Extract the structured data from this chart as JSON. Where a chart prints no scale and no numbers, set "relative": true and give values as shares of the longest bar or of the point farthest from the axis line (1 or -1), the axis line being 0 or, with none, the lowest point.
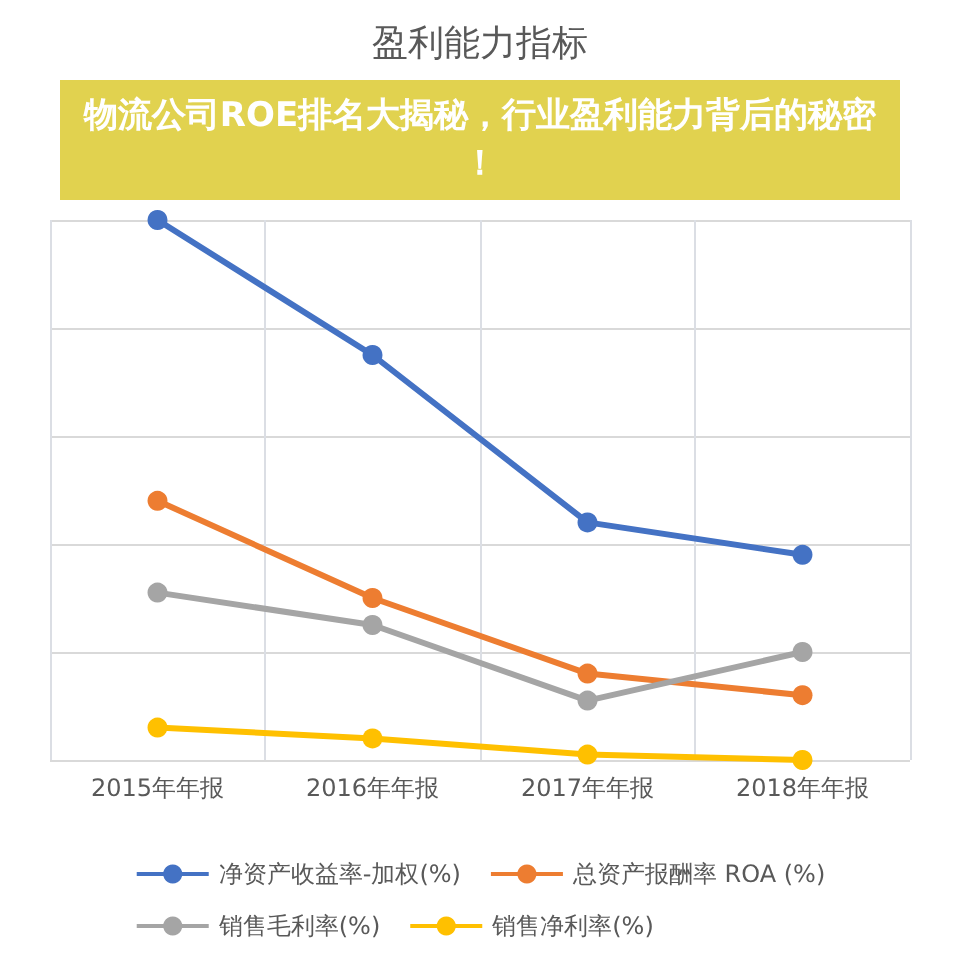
{
  "chart_data": {
    "type": "line",
    "title": "盈利能力指标",
    "subtitle": "物流公司ROE排名大揭秘，行业盈利能力背后的秘密！",
    "relative": true,
    "categories": [
      "2015年年报",
      "2016年年报",
      "2017年年报",
      "2018年年报"
    ],
    "series": [
      {
        "name": "净资产收益率-加权(%)",
        "color": "#4472c4",
        "values": [
          1,
          0.75,
          0.44,
          0.38
        ]
      },
      {
        "name": "总资产报酬率 ROA (%)",
        "color": "#ed7d31",
        "values": [
          0.48,
          0.3,
          0.16,
          0.12
        ]
      },
      {
        "name": "销售毛利率(%)",
        "color": "#a5a5a5",
        "values": [
          0.31,
          0.25,
          0.11,
          0.2
        ]
      },
      {
        "name": "销售净利率(%)",
        "color": "#ffc000",
        "values": [
          0.06,
          0.04,
          0.01,
          0
        ]
      }
    ],
    "grid": true,
    "legend": "bottom",
    "marker": "circle",
    "line_style": "solid"
  }
}
